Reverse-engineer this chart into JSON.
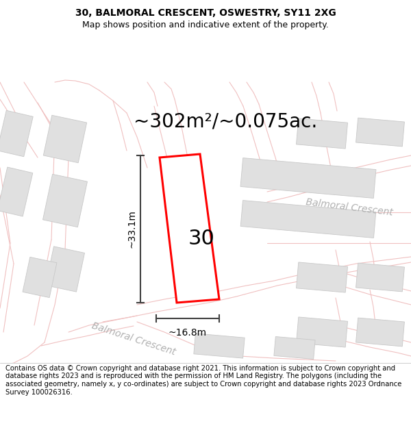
{
  "title_line1": "30, BALMORAL CRESCENT, OSWESTRY, SY11 2XG",
  "title_line2": "Map shows position and indicative extent of the property.",
  "area_text": "~302m²/~0.075ac.",
  "width_label": "~16.8m",
  "height_label": "~33.1m",
  "property_number": "30",
  "road_label1": "Balmoral Crescent",
  "road_label2": "Balmoral Crescent",
  "copyright_text": "Contains OS data © Crown copyright and database right 2021. This information is subject to Crown copyright and database rights 2023 and is reproduced with the permission of HM Land Registry. The polygons (including the associated geometry, namely x, y co-ordinates) are subject to Crown copyright and database rights 2023 Ordnance Survey 100026316.",
  "map_bg": "#ffffff",
  "road_color": "#f0c0c0",
  "building_color": "#e0e0e0",
  "building_edge": "#c8c8c8",
  "property_color": "#ff0000",
  "annotation_color": "#404040",
  "title_fontsize": 10,
  "subtitle_fontsize": 9,
  "area_fontsize": 20,
  "number_fontsize": 22,
  "road_fontsize": 10,
  "copyright_fontsize": 7.2
}
